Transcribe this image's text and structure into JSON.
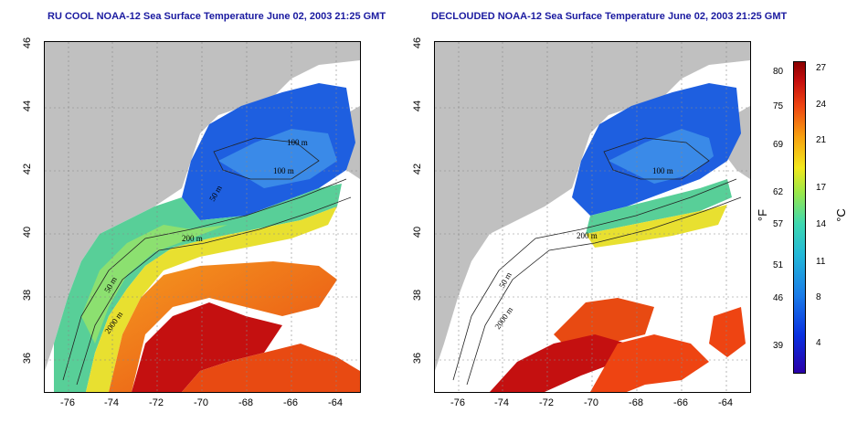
{
  "left_panel": {
    "title": "RU COOL NOAA-12 Sea Surface Temperature June 02, 2003 21:25 GMT",
    "contours": [
      "100 m",
      "100 m",
      "50 m",
      "200 m",
      "50 m",
      "2000 m"
    ]
  },
  "right_panel": {
    "title": "DECLOUDED NOAA-12 Sea Surface Temperature June 02, 2003 21:25 GMT",
    "contours": [
      "100 m",
      "200 m",
      "50 m",
      "2000 m"
    ]
  },
  "axes": {
    "lat_ticks": [
      "46",
      "44",
      "42",
      "40",
      "38",
      "36"
    ],
    "lon_ticks": [
      "-76",
      "-74",
      "-72",
      "-70",
      "-68",
      "-66",
      "-64"
    ]
  },
  "colorbar": {
    "fahrenheit_ticks": [
      "80",
      "75",
      "69",
      "62",
      "57",
      "51",
      "46",
      "39"
    ],
    "celsius_ticks": [
      "27",
      "24",
      "21",
      "17",
      "14",
      "11",
      "8",
      "4"
    ],
    "unit_f": "°F",
    "unit_c": "°C"
  }
}
